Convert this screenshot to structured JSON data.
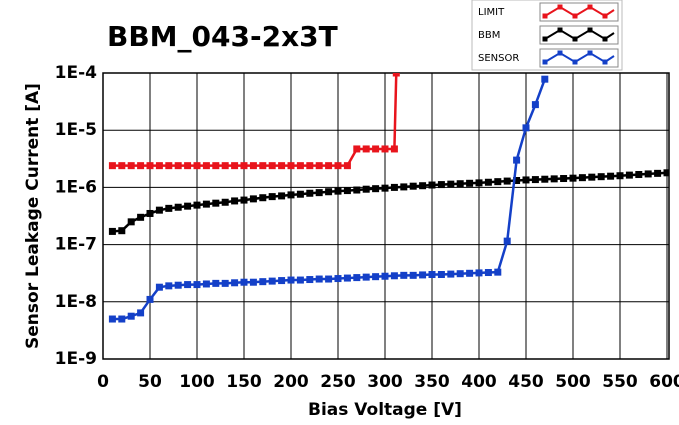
{
  "chart_data": {
    "type": "line",
    "title": "BBM_043-2x3T",
    "xlabel": "Bias Voltage [V]",
    "ylabel": "Sensor Leakage Current [A]",
    "xlim": [
      0,
      600
    ],
    "xticks": [
      0,
      50,
      100,
      150,
      200,
      250,
      300,
      350,
      400,
      450,
      500,
      550,
      600
    ],
    "ylim": [
      1e-09,
      0.0001
    ],
    "log_y": true,
    "grid": true,
    "yticks": [
      {
        "value": 1e-09,
        "label": "1E-9"
      },
      {
        "value": 1e-08,
        "label": "1E-8"
      },
      {
        "value": 1e-07,
        "label": "1E-7"
      },
      {
        "value": 1e-06,
        "label": "1E-6"
      },
      {
        "value": 1e-05,
        "label": "1E-5"
      },
      {
        "value": 0.0001,
        "label": "1E-4"
      }
    ],
    "series": [
      {
        "name": "LIMIT",
        "color": "#e8141c",
        "x": [
          10,
          20,
          30,
          40,
          50,
          60,
          70,
          80,
          90,
          100,
          110,
          120,
          130,
          140,
          150,
          160,
          170,
          180,
          190,
          200,
          210,
          220,
          230,
          240,
          250,
          260,
          270,
          280,
          290,
          300,
          310,
          312
        ],
        "values": [
          2.4e-06,
          2.4e-06,
          2.4e-06,
          2.4e-06,
          2.4e-06,
          2.4e-06,
          2.4e-06,
          2.4e-06,
          2.4e-06,
          2.4e-06,
          2.4e-06,
          2.4e-06,
          2.4e-06,
          2.4e-06,
          2.4e-06,
          2.4e-06,
          2.4e-06,
          2.4e-06,
          2.4e-06,
          2.4e-06,
          2.4e-06,
          2.4e-06,
          2.4e-06,
          2.4e-06,
          2.4e-06,
          2.4e-06,
          4.7e-06,
          4.7e-06,
          4.7e-06,
          4.7e-06,
          4.7e-06,
          0.0001
        ]
      },
      {
        "name": "BBM",
        "color": "#000000",
        "x": [
          10,
          20,
          30,
          40,
          50,
          60,
          70,
          80,
          90,
          100,
          110,
          120,
          130,
          140,
          150,
          160,
          170,
          180,
          190,
          200,
          210,
          220,
          230,
          240,
          250,
          260,
          270,
          280,
          290,
          300,
          310,
          320,
          330,
          340,
          350,
          360,
          370,
          380,
          390,
          400,
          410,
          420,
          430,
          440,
          450,
          460,
          470,
          480,
          490,
          500,
          510,
          520,
          530,
          540,
          550,
          560,
          570,
          580,
          590,
          600
        ],
        "values": [
          1.7e-07,
          1.75e-07,
          2.5e-07,
          3e-07,
          3.5e-07,
          4e-07,
          4.3e-07,
          4.5e-07,
          4.7e-07,
          4.9e-07,
          5.1e-07,
          5.3e-07,
          5.5e-07,
          5.8e-07,
          6e-07,
          6.3e-07,
          6.6e-07,
          6.9e-07,
          7.1e-07,
          7.4e-07,
          7.6e-07,
          7.9e-07,
          8.1e-07,
          8.4e-07,
          8.6e-07,
          8.8e-07,
          9e-07,
          9.3e-07,
          9.5e-07,
          9.7e-07,
          1e-06,
          1.02e-06,
          1.05e-06,
          1.07e-06,
          1.1e-06,
          1.12e-06,
          1.14e-06,
          1.16e-06,
          1.18e-06,
          1.2e-06,
          1.23e-06,
          1.26e-06,
          1.29e-06,
          1.32e-06,
          1.35e-06,
          1.37e-06,
          1.39e-06,
          1.41e-06,
          1.43e-06,
          1.45e-06,
          1.48e-06,
          1.51e-06,
          1.54e-06,
          1.57e-06,
          1.6e-06,
          1.64e-06,
          1.68e-06,
          1.72e-06,
          1.76e-06,
          1.8e-06
        ]
      },
      {
        "name": "SENSOR",
        "color": "#1440c8",
        "x": [
          10,
          20,
          30,
          40,
          50,
          60,
          70,
          80,
          90,
          100,
          110,
          120,
          130,
          140,
          150,
          160,
          170,
          180,
          190,
          200,
          210,
          220,
          230,
          240,
          250,
          260,
          270,
          280,
          290,
          300,
          310,
          320,
          330,
          340,
          350,
          360,
          370,
          380,
          390,
          400,
          410,
          420,
          430,
          440,
          450,
          460,
          470
        ],
        "values": [
          5e-09,
          5e-09,
          5.6e-09,
          6.4e-09,
          1.1e-08,
          1.8e-08,
          1.9e-08,
          1.95e-08,
          2e-08,
          2e-08,
          2.05e-08,
          2.1e-08,
          2.1e-08,
          2.15e-08,
          2.2e-08,
          2.2e-08,
          2.25e-08,
          2.3e-08,
          2.35e-08,
          2.4e-08,
          2.4e-08,
          2.45e-08,
          2.5e-08,
          2.5e-08,
          2.55e-08,
          2.6e-08,
          2.65e-08,
          2.7e-08,
          2.75e-08,
          2.8e-08,
          2.85e-08,
          2.9e-08,
          2.9e-08,
          2.95e-08,
          3e-08,
          3e-08,
          3.05e-08,
          3.1e-08,
          3.15e-08,
          3.2e-08,
          3.25e-08,
          3.3e-08,
          1.15e-07,
          3e-06,
          1.1e-05,
          2.8e-05,
          7.8e-05
        ]
      }
    ]
  }
}
